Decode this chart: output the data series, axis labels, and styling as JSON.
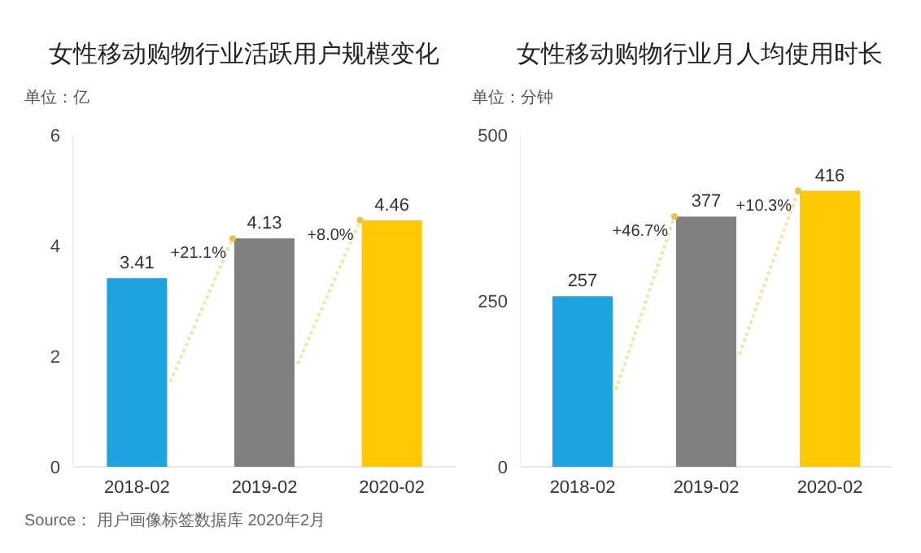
{
  "chart_data": [
    {
      "type": "bar",
      "title": "女性移动购物行业活跃用户规模变化",
      "ylabel": "单位：亿",
      "categories": [
        "2018-02",
        "2019-02",
        "2020-02"
      ],
      "values": [
        3.41,
        4.13,
        4.46
      ],
      "colors": [
        "#1fa3e0",
        "#808080",
        "#ffc800"
      ],
      "ylim": [
        0,
        6
      ],
      "yticks": [
        0,
        2,
        4,
        6
      ],
      "data_labels": true,
      "annotations": [
        {
          "text": "+21.1%",
          "x": "2019-02",
          "y": 4.13
        },
        {
          "text": "+8.0%",
          "x": "2020-02",
          "y": 4.46
        },
        "Source： 用户画像标签数据库 2020年2月"
      ]
    },
    {
      "type": "bar",
      "title": "女性移动购物行业月人均使用时长",
      "ylabel": "单位：分钟",
      "categories": [
        "2018-02",
        "2019-02",
        "2020-02"
      ],
      "values": [
        257,
        377,
        416
      ],
      "colors": [
        "#1fa3e0",
        "#808080",
        "#ffc800"
      ],
      "ylim": [
        0,
        500
      ],
      "yticks": [
        0,
        250,
        500
      ],
      "data_labels": true,
      "annotations": [
        {
          "text": "+46.7%",
          "x": "2019-02",
          "y": 377
        },
        {
          "text": "+10.3%",
          "x": "2020-02",
          "y": 416
        }
      ]
    }
  ]
}
